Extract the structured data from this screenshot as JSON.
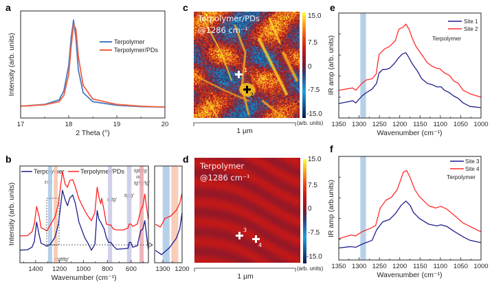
{
  "panels": {
    "a": "a",
    "b": "b",
    "c": "c",
    "d": "d",
    "e": "e",
    "f": "f"
  },
  "colors": {
    "a_terpolymer": "#4a78c0",
    "a_pds": "#f06040",
    "b_terpolymer": "#1a1a8c",
    "b_pds": "#ff2020",
    "ef_blue": "#1c1c8c",
    "ef_red": "#ff2b2b",
    "band_blue": "#a9c8e6",
    "band_orange": "#f7c4ad",
    "band_purple": "#c8c8e6",
    "band_red": "#eaa6ae"
  },
  "chart_data": [
    {
      "id": "a",
      "type": "line",
      "xlabel": "2 Theta (°)",
      "ylabel": "Intensity (arb. units)",
      "xlim": [
        17,
        20
      ],
      "ylim": [
        -0.08,
        1.1
      ],
      "xticks": [
        "17",
        "18",
        "19",
        "20"
      ],
      "grid": false,
      "legend_position": "right",
      "x": [
        17,
        17.5,
        17.8,
        17.9,
        18.0,
        18.05,
        18.1,
        18.15,
        18.2,
        18.3,
        18.5,
        19,
        19.5,
        20
      ],
      "series": [
        {
          "name": "Terpolymer",
          "values": [
            0.05,
            0.07,
            0.12,
            0.22,
            0.5,
            0.8,
            1.0,
            0.8,
            0.45,
            0.2,
            0.1,
            0.06,
            0.045,
            0.04
          ]
        },
        {
          "name": "Terpolymer/PDs",
          "values": [
            0.05,
            0.065,
            0.1,
            0.17,
            0.4,
            0.7,
            0.95,
            0.9,
            0.6,
            0.28,
            0.13,
            0.07,
            0.05,
            0.04
          ]
        }
      ]
    },
    {
      "id": "b",
      "type": "line",
      "xlabel": "Wavenumber (cm⁻¹)",
      "ylabel": "Intensity (arb. units)",
      "xlim": [
        1532,
        456
      ],
      "ylim": [
        0,
        1
      ],
      "xticks": [
        "1400",
        "1200",
        "1000",
        "800",
        "600"
      ],
      "grid": false,
      "legend_position": "top",
      "x": [
        1532,
        1469,
        1431,
        1411,
        1392,
        1373,
        1354,
        1335,
        1306,
        1278,
        1239,
        1210,
        1191,
        1176,
        1153,
        1134,
        1114,
        1090,
        1067,
        1038,
        990,
        961,
        933,
        904,
        885,
        871,
        856,
        847,
        827,
        808,
        789,
        770,
        751,
        722,
        664,
        626,
        617,
        603,
        588,
        549,
        521,
        502,
        486,
        473,
        457
      ],
      "series": [
        {
          "name": "Terpolymer",
          "values": [
            0.13,
            0.135,
            0.16,
            0.22,
            0.42,
            0.3,
            0.2,
            0.19,
            0.17,
            0.19,
            0.26,
            0.4,
            0.59,
            0.75,
            0.65,
            0.59,
            0.67,
            0.7,
            0.61,
            0.42,
            0.26,
            0.2,
            0.13,
            0.19,
            0.54,
            0.45,
            0.42,
            0.4,
            0.35,
            0.26,
            0.21,
            0.21,
            0.175,
            0.14,
            0.145,
            0.15,
            0.21,
            0.21,
            0.16,
            0.175,
            0.33,
            0.35,
            0.435,
            0.3,
            0.14
          ]
        },
        {
          "name": "Terpolymer/PDs",
          "values": [
            0.277,
            0.28,
            0.32,
            0.4,
            0.58,
            0.49,
            0.36,
            0.35,
            0.33,
            0.39,
            0.47,
            0.61,
            0.8,
            0.94,
            0.81,
            0.78,
            0.85,
            0.86,
            0.78,
            0.66,
            0.54,
            0.48,
            0.435,
            0.52,
            0.78,
            0.68,
            0.61,
            0.665,
            0.54,
            0.4,
            0.39,
            0.39,
            0.35,
            0.34,
            0.34,
            0.36,
            0.4,
            0.4,
            0.375,
            0.4,
            0.54,
            0.59,
            0.71,
            0.59,
            0.45
          ]
        }
      ],
      "bands": [
        {
          "from": 1297,
          "to": 1262,
          "color": "band_blue"
        },
        {
          "from": 1249,
          "to": 1216,
          "color": "band_orange"
        },
        {
          "from": 795,
          "to": 760,
          "color": "band_purple"
        },
        {
          "from": 636,
          "to": 598,
          "color": "band_purple"
        },
        {
          "from": 530,
          "to": 496,
          "color": "band_red"
        }
      ],
      "annotations": {
        "t3": "t>3",
        "tttg": "tttgtttg'",
        "tgtg1": "tgtg'",
        "tgtg2": "tgtg'",
        "tgtgtg": "tgtgtg",
        "or": "or",
        "tgptg": "tg'tg'tg'"
      }
    },
    {
      "id": "b_inset",
      "type": "line",
      "xlim": [
        1343,
        1200
      ],
      "ylim": [
        0,
        1
      ],
      "xticks": [
        "1300",
        "1200"
      ],
      "series": [
        {
          "name": "Terpolymer",
          "x": [
            1339,
            1307,
            1265,
            1230,
            1212,
            1200
          ],
          "values": [
            0.128,
            0.084,
            0.157,
            0.253,
            0.349,
            0.518
          ]
        },
        {
          "name": "Terpolymer/PDs",
          "x": [
            1339,
            1313,
            1289,
            1260,
            1230,
            1212,
            1200
          ],
          "values": [
            0.398,
            0.369,
            0.458,
            0.482,
            0.542,
            0.614,
            0.723
          ]
        }
      ],
      "bands": [
        {
          "from": 1301,
          "to": 1265,
          "color": "band_blue"
        },
        {
          "from": 1256,
          "to": 1220,
          "color": "band_orange"
        }
      ]
    },
    {
      "id": "c",
      "type": "heatmap",
      "title_line1": "Terpolymer/PDs",
      "title_line2": "@1286 cm⁻¹",
      "colorbar_ticks": [
        "15.0",
        "7.5",
        "0",
        "-7.5",
        "-15.0"
      ],
      "colorbar_unit": "(arb. units)",
      "clim": [
        -15,
        15
      ],
      "scalebar": "1 µm",
      "markers": [
        {
          "label": "1",
          "color": "#ffffff"
        },
        {
          "label": "2",
          "color": "#000000"
        }
      ]
    },
    {
      "id": "d",
      "type": "heatmap",
      "title_line1": "Terpolymer",
      "title_line2": "@1286 cm⁻¹",
      "colorbar_ticks": [
        "15.0",
        "7.5",
        "0",
        "-7.5",
        "-15.0"
      ],
      "colorbar_unit": "(arb. units)",
      "clim": [
        -15,
        15
      ],
      "scalebar": "1 µm",
      "markers": [
        {
          "label": "3",
          "color": "#ffffff"
        },
        {
          "label": "4",
          "color": "#ffffff"
        }
      ]
    },
    {
      "id": "e",
      "type": "line",
      "xlabel": "Wavenumber (cm⁻¹)",
      "ylabel": "IR amp (arb. units)",
      "note": "Terpolymer",
      "xlim": [
        1350,
        1000
      ],
      "ylim": [
        0,
        1
      ],
      "xticks": [
        "1350",
        "1300",
        "1250",
        "1200",
        "1150",
        "1100",
        "1050",
        "1000"
      ],
      "legend_position": "top-right",
      "bands": [
        {
          "from": 1297,
          "to": 1283,
          "color": "band_blue"
        }
      ],
      "series": [
        {
          "name": "Site 1",
          "x": [
            1350,
            1327,
            1316,
            1308,
            1293,
            1282,
            1268,
            1257,
            1251,
            1242,
            1234,
            1225,
            1214,
            1203,
            1194,
            1185,
            1180,
            1169,
            1157,
            1146,
            1132,
            1121,
            1109,
            1098,
            1090,
            1078,
            1067,
            1056,
            1044,
            1027,
            1000
          ],
          "values": [
            0.138,
            0.154,
            0.165,
            0.143,
            0.209,
            0.242,
            0.275,
            0.33,
            0.429,
            0.462,
            0.462,
            0.473,
            0.516,
            0.571,
            0.609,
            0.622,
            0.593,
            0.516,
            0.451,
            0.374,
            0.33,
            0.319,
            0.297,
            0.297,
            0.264,
            0.242,
            0.209,
            0.187,
            0.143,
            0.11,
            0.099
          ]
        },
        {
          "name": "Site 2",
          "x": [
            1350,
            1327,
            1316,
            1308,
            1293,
            1282,
            1268,
            1258,
            1251,
            1237,
            1225,
            1211,
            1202,
            1191,
            1185,
            1177,
            1169,
            1160,
            1146,
            1132,
            1121,
            1109,
            1101,
            1090,
            1078,
            1067,
            1056,
            1044,
            1027,
            1000
          ],
          "values": [
            0.264,
            0.279,
            0.286,
            0.264,
            0.33,
            0.363,
            0.374,
            0.418,
            0.604,
            0.659,
            0.681,
            0.736,
            0.846,
            0.868,
            0.895,
            0.846,
            0.758,
            0.681,
            0.604,
            0.527,
            0.495,
            0.473,
            0.468,
            0.429,
            0.407,
            0.352,
            0.33,
            0.264,
            0.231,
            0.198
          ]
        }
      ]
    },
    {
      "id": "f",
      "type": "line",
      "xlabel": "Wavenumber (cm⁻¹)",
      "ylabel": "IR amp (arb.units)",
      "note": "Terpolymer",
      "xlim": [
        1350,
        1000
      ],
      "ylim": [
        0,
        1
      ],
      "xticks": [
        "1350",
        "1300",
        "1250",
        "1200",
        "1150",
        "1100",
        "1050",
        "1000"
      ],
      "legend_position": "top-right",
      "bands": [
        {
          "from": 1297,
          "to": 1283,
          "color": "band_blue"
        }
      ],
      "series": [
        {
          "name": "Site 3",
          "x": [
            1350,
            1322,
            1308,
            1293,
            1268,
            1257,
            1242,
            1225,
            1211,
            1197,
            1185,
            1174,
            1166,
            1152,
            1129,
            1109,
            1098,
            1084,
            1067,
            1044,
            1027,
            1000
          ],
          "values": [
            0.116,
            0.129,
            0.123,
            0.152,
            0.19,
            0.29,
            0.368,
            0.391,
            0.446,
            0.525,
            0.569,
            0.525,
            0.458,
            0.402,
            0.346,
            0.33,
            0.339,
            0.324,
            0.279,
            0.223,
            0.19,
            0.167
          ]
        },
        {
          "name": "Site 4",
          "x": [
            1350,
            1322,
            1308,
            1293,
            1268,
            1259,
            1248,
            1234,
            1220,
            1206,
            1191,
            1183,
            1174,
            1163,
            1152,
            1129,
            1112,
            1098,
            1084,
            1067,
            1044,
            1022,
            1000
          ],
          "values": [
            0.205,
            0.239,
            0.234,
            0.272,
            0.313,
            0.335,
            0.502,
            0.576,
            0.607,
            0.681,
            0.848,
            0.864,
            0.792,
            0.681,
            0.614,
            0.525,
            0.502,
            0.518,
            0.491,
            0.435,
            0.357,
            0.313,
            0.272
          ]
        }
      ]
    }
  ]
}
